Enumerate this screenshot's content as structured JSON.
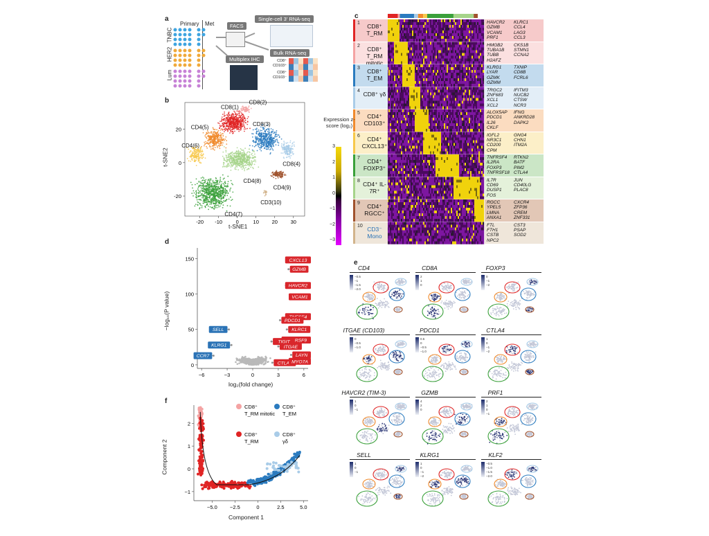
{
  "panel_labels": {
    "a": "a",
    "b": "b",
    "c": "c",
    "d": "d",
    "e": "e",
    "f": "f"
  },
  "panel_a": {
    "primary": "Primary",
    "met": "Met",
    "cohorts": [
      "TNBC",
      "HER2",
      "Lum"
    ],
    "facs": "FACS",
    "scrna": "Single-cell 3′ RNA-seq",
    "ihc": "Multiplex IHC",
    "bulk": "Bulk RNA-seq",
    "bulk_rows": [
      "CD8⁺ CD103⁺",
      "CD8⁺ CD103⁻"
    ]
  },
  "panel_b": {
    "xlabel": "t-SNE1",
    "ylabel": "t-SNE2",
    "xticks": [
      -20,
      -10,
      0,
      10,
      20,
      30
    ],
    "yticks": [
      -20,
      0,
      20
    ],
    "clusters": [
      {
        "label": "CD8(1)",
        "color": "#e02424"
      },
      {
        "label": "CD8(2)",
        "color": "#f4a3a3"
      },
      {
        "label": "CD8(3)",
        "color": "#2b7bbf"
      },
      {
        "label": "CD8(4)",
        "color": "#a9cce8"
      },
      {
        "label": "CD4(5)",
        "color": "#f08a2c"
      },
      {
        "label": "CD4(6)",
        "color": "#f7c84a"
      },
      {
        "label": "CD4(7)",
        "color": "#3aa03a"
      },
      {
        "label": "CD4(8)",
        "color": "#a6d48a"
      },
      {
        "label": "CD4(9)",
        "color": "#a0522d"
      },
      {
        "label": "CD3(10)",
        "color": "#d2b48c"
      }
    ]
  },
  "panel_c": {
    "colorbar_title": "Expression z-score (log₂)",
    "colorbar_ticks": [
      "3",
      "2",
      "1",
      "0",
      "−1",
      "−2",
      "−3"
    ],
    "rows": [
      {
        "num": "1",
        "label": "CD8⁺ T_RM",
        "bg": "#f6caca",
        "bar": "#e02424",
        "genes1": "HAVCR2\nGZMB\nVCAM1\nPRF1",
        "genes2": "KLRC1\nCCL4\nLAG3\nCCL3"
      },
      {
        "num": "2",
        "label": "CD8⁺ T_RM mitotic",
        "bg": "#fbe0e0",
        "bar": "#f4a3a3",
        "genes1": "HMGB2\nTUBA1B\nTUBB\nH2AFZ",
        "genes2": "CKS1B\nSTMN1\nCCNA2"
      },
      {
        "num": "3",
        "label": "CD8⁺ T_EM",
        "bg": "#c3dbee",
        "bar": "#2b7bbf",
        "genes1": "KLRG1\nLYAR\nGZMK\nGZMM",
        "genes2": "TXNIP\nCD8B\nFCRL6"
      },
      {
        "num": "4",
        "label": "CD8⁺ γδ",
        "bg": "#e3eef7",
        "bar": "#a9cce8",
        "genes1": "TRGC2\nZNF683\nXCL1\nXCL2",
        "genes2": "IFITM3\nNUCB2\nCTSW\nNCR3"
      },
      {
        "num": "5",
        "label": "CD4⁺ CD103⁺",
        "bg": "#fbdcc0",
        "bar": "#f08a2c",
        "genes1": "ALOX5AP\nPDCD1\nIL26\nCKLF",
        "genes2": "IFNG\nANKRD28\nDAPK2"
      },
      {
        "num": "6",
        "label": "CD4⁺ CXCL13⁺",
        "bg": "#fcefc8",
        "bar": "#f7c84a",
        "genes1": "IGFL2\nNR3C1\nCD200\nCPM",
        "genes2": "GNG4\nCHN1\nITM2A"
      },
      {
        "num": "7",
        "label": "CD4⁺ FOXP3⁺",
        "bg": "#cbe6c6",
        "bar": "#3aa03a",
        "genes1": "TNFRSF4\nIL2RA\nFOXP3\nTNFRSF18",
        "genes2": "RTKN2\nBATF\nPIM2\nCTLA4"
      },
      {
        "num": "8",
        "label": "CD4⁺ IL-7R⁺",
        "bg": "#e4f1da",
        "bar": "#a6d48a",
        "genes1": "IL7R\nCD69\nDUSP1\nFOS",
        "genes2": "JUN\nCD40LG\nPLAC8"
      },
      {
        "num": "9",
        "label": "CD4⁺ RGCC⁺",
        "bg": "#e2c7b6",
        "bar": "#a0522d",
        "genes1": "RGCC\nYPEL5\nLMNA\nANXA1",
        "genes2": "CXCR4\nZFP36\nCREM\nZNF331"
      },
      {
        "num": "10",
        "label": "CD3⁻ Mono",
        "bg": "#efe6da",
        "bar": "#d2b48c",
        "genes1": "FTL\nFTH1\nCSTB\nNPC2",
        "genes2": "CST3\nPSAP\nSOD2"
      }
    ]
  },
  "panel_d": {
    "xlabel": "log₂(fold change)",
    "ylabel": "−log₁₀(P value)",
    "xticks": [
      -6,
      -3,
      0,
      3,
      6
    ],
    "yticks": [
      0,
      50,
      100,
      150
    ],
    "up_genes": [
      "CXCL13",
      "GZMB",
      "HAVCR2",
      "VCAM1",
      "TNFSF4",
      "PDCD1",
      "KLRC1",
      "TNFRSF9",
      "TIGIT",
      "ITGAE",
      "LAYN",
      "CTLA4",
      "MYO7A"
    ],
    "down_genes": [
      "SELL",
      "KLRG1",
      "CCR7"
    ],
    "up_color": "#d9262b",
    "down_color": "#2b73b6"
  },
  "chart_data": {
    "type": "scatter",
    "title": "",
    "xlabel": "log₂(fold change)",
    "ylabel": "−log₁₀(P value)",
    "xlim": [
      -6.5,
      6.5
    ],
    "ylim": [
      -5,
      165
    ],
    "labeled_points": [
      {
        "gene": "CXCL13",
        "x": 4.5,
        "y": 148
      },
      {
        "gene": "GZMB",
        "x": 4.2,
        "y": 135
      },
      {
        "gene": "HAVCR2",
        "x": 3.9,
        "y": 112
      },
      {
        "gene": "VCAM1",
        "x": 4.6,
        "y": 96
      },
      {
        "gene": "TNFSF4",
        "x": 4.7,
        "y": 68
      },
      {
        "gene": "PDCD1",
        "x": 3.2,
        "y": 63
      },
      {
        "gene": "KLRC1",
        "x": 4.0,
        "y": 50
      },
      {
        "gene": "TNFRSF9",
        "x": 4.5,
        "y": 35
      },
      {
        "gene": "TIGIT",
        "x": 2.2,
        "y": 33
      },
      {
        "gene": "ITGAE",
        "x": 3.0,
        "y": 26
      },
      {
        "gene": "LAYN",
        "x": 4.5,
        "y": 14
      },
      {
        "gene": "CTLA4",
        "x": 2.3,
        "y": 3
      },
      {
        "gene": "MYO7A",
        "x": 5.0,
        "y": 5
      },
      {
        "gene": "SELL",
        "x": -2.8,
        "y": 50
      },
      {
        "gene": "KLRG1",
        "x": -2.5,
        "y": 28
      },
      {
        "gene": "CCR7",
        "x": -4.6,
        "y": 13
      }
    ]
  },
  "panel_e": {
    "genes": [
      "CD4",
      "CD8A",
      "FOXP3",
      "ITGAE (CD103)",
      "PDCD1",
      "CTLA4",
      "HAVCR2 (TIM-3)",
      "GZMB",
      "PRF1",
      "SELL",
      "KLRG1",
      "KLF2"
    ],
    "scale_labels": [
      [
        "−0.5",
        "−1",
        "−1.5",
        "−2.0"
      ],
      [
        "2",
        "1",
        "0"
      ],
      [
        "0",
        "−1",
        "−2"
      ],
      [
        "0",
        "−0.5",
        "−1.0"
      ],
      [
        "0.5",
        "0",
        "−0.5",
        "−1.0"
      ],
      [
        "1",
        "0",
        "−1",
        "−2"
      ],
      [
        "1",
        "0",
        "−1"
      ],
      [
        "4",
        "2",
        "0"
      ],
      [
        "2",
        "1",
        "0",
        "−1"
      ],
      [
        "1",
        "0",
        "−1"
      ],
      [
        "1",
        "0",
        "−1",
        "−2"
      ],
      [
        "−0.5",
        "−1.0",
        "−1.5",
        "−2.0"
      ]
    ]
  },
  "panel_f": {
    "xlabel": "Component 1",
    "ylabel": "Component 2",
    "xticks": [
      "−5.0",
      "−2.5",
      "0",
      "2.5",
      "5.0"
    ],
    "yticks": [
      "−1",
      "0",
      "1",
      "2"
    ],
    "legend": [
      {
        "label": "CD8⁺ T_RM mitotic",
        "color": "#f4a3a3"
      },
      {
        "label": "CD8⁺ T_EM",
        "color": "#2b7bbf"
      },
      {
        "label": "CD8⁺ T_RM",
        "color": "#e02424"
      },
      {
        "label": "CD8⁺ γδ",
        "color": "#a9cce8"
      }
    ]
  }
}
